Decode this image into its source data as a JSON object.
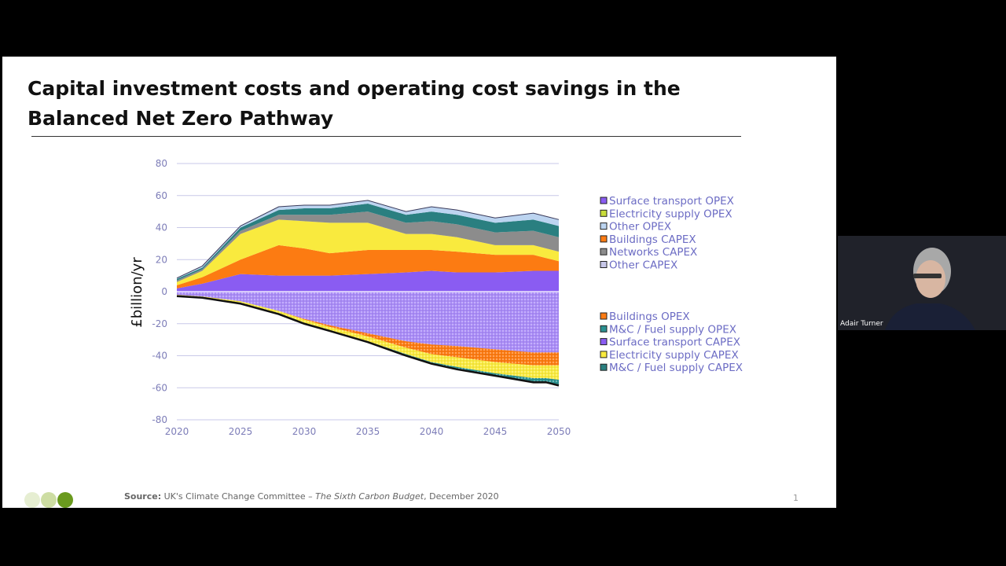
{
  "slide": {
    "title": "Capital investment costs and operating cost savings in the Balanced Net Zero Pathway",
    "source_label": "Source:",
    "source_text": "UK's Climate Change Committee – ",
    "source_italic": "The Sixth Carbon Budget",
    "source_tail": ", December 2020",
    "page_number": "1"
  },
  "video_tile": {
    "participant_name": "Adair Turner"
  },
  "colors": {
    "logo_dots": [
      "#e6eed2",
      "#cddda3",
      "#6a9a1e"
    ]
  },
  "chart_data": {
    "type": "area",
    "stacked": true,
    "x": [
      2020,
      2022,
      2025,
      2028,
      2030,
      2032,
      2035,
      2038,
      2040,
      2042,
      2045,
      2048,
      2049,
      2050
    ],
    "xlim": [
      2020,
      2050
    ],
    "ylim": [
      -80,
      80
    ],
    "xticks": [
      "2020",
      "2025",
      "2030",
      "2035",
      "2040",
      "2045",
      "2050"
    ],
    "yticks": [
      "80",
      "60",
      "40",
      "20",
      "0",
      "-20",
      "-40",
      "-60",
      "-80"
    ],
    "ylabel": "£billion/yr",
    "grid": true,
    "legend_placement": "right",
    "positive_series": [
      {
        "name": "Surface transport OPEX",
        "color": "#8a5cf2",
        "values": [
          2,
          5,
          11,
          10,
          10,
          10,
          11,
          12,
          13,
          12,
          12,
          13,
          13,
          13
        ]
      },
      {
        "name": "Buildings CAPEX",
        "color": "#fc7b12",
        "values": [
          2,
          4,
          9,
          19,
          17,
          14,
          15,
          14,
          13,
          13,
          11,
          10,
          8,
          6
        ]
      },
      {
        "name": "Electricity supply OPEX",
        "color": "#f9ea3e",
        "values": [
          2,
          4,
          16,
          16,
          17,
          19,
          17,
          10,
          10,
          9,
          6,
          6,
          6,
          6
        ]
      },
      {
        "name": "Networks CAPEX",
        "color": "#8c8c8c",
        "values": [
          1,
          1,
          2,
          3,
          4,
          5,
          7,
          7,
          8,
          8,
          8,
          9,
          9,
          9
        ]
      },
      {
        "name": "Other CAPEX",
        "color": "#2a7f80",
        "values": [
          1,
          1,
          2,
          3,
          4,
          4,
          5,
          5,
          6,
          6,
          6,
          7,
          7,
          7
        ]
      },
      {
        "name": "Other OPEX",
        "color": "#bcd4f0",
        "values": [
          0.5,
          1,
          1,
          2,
          2,
          2,
          2,
          2,
          3,
          3,
          3,
          4,
          4,
          4
        ]
      }
    ],
    "negative_series": [
      {
        "name": "Surface transport CAPEX",
        "color": "#a98bf7",
        "pattern": "dots",
        "values": [
          -2,
          -3,
          -6,
          -12,
          -17,
          -21,
          -26,
          -31,
          -33,
          -34,
          -36,
          -38,
          -38,
          -38
        ]
      },
      {
        "name": "Buildings OPEX",
        "color": "#fc7b12",
        "pattern": "dots",
        "values": [
          0,
          0,
          0,
          0,
          -0.5,
          -1,
          -2,
          -4,
          -6,
          -7,
          -8,
          -8,
          -8,
          -8
        ]
      },
      {
        "name": "Electricity supply CAPEX",
        "color": "#f9ea3e",
        "pattern": "dots",
        "values": [
          -0.5,
          -0.5,
          -1,
          -1.5,
          -2,
          -2,
          -3,
          -4,
          -5,
          -6,
          -7,
          -8,
          -8,
          -9
        ]
      },
      {
        "name": "M&C / Fuel supply OPEX",
        "color": "#2a9090",
        "pattern": "dots",
        "values": [
          0,
          0,
          0,
          0,
          0,
          0,
          0,
          -0.5,
          -0.5,
          -1,
          -1,
          -2,
          -2,
          -3
        ]
      },
      {
        "name": "M&C / Fuel supply CAPEX",
        "color": "#000000",
        "values": [
          -0.3,
          -0.3,
          -0.5,
          -0.5,
          -0.5,
          -0.5,
          -0.5,
          -0.5,
          -0.5,
          -0.5,
          -0.5,
          -0.6,
          -0.6,
          -0.6
        ]
      }
    ],
    "legend_upper": [
      {
        "name": "Surface transport OPEX",
        "color": "#8a5cf2"
      },
      {
        "name": "Electricity supply OPEX",
        "color": "#c8dc3a"
      },
      {
        "name": "Other OPEX",
        "color": "#bcd4f0"
      },
      {
        "name": "Buildings CAPEX",
        "color": "#fc7b12"
      },
      {
        "name": "Networks CAPEX",
        "color": "#8c8c8c"
      },
      {
        "name": "Other CAPEX",
        "color": "#c7c7e8"
      }
    ],
    "legend_lower": [
      {
        "name": "Buildings OPEX",
        "color": "#fc7b12"
      },
      {
        "name": "M&C / Fuel supply OPEX",
        "color": "#2a9090"
      },
      {
        "name": "Surface transport CAPEX",
        "color": "#8a5cf2"
      },
      {
        "name": "Electricity supply CAPEX",
        "color": "#f9ea3e"
      },
      {
        "name": "M&C / Fuel supply CAPEX",
        "color": "#2a7f80"
      }
    ]
  }
}
